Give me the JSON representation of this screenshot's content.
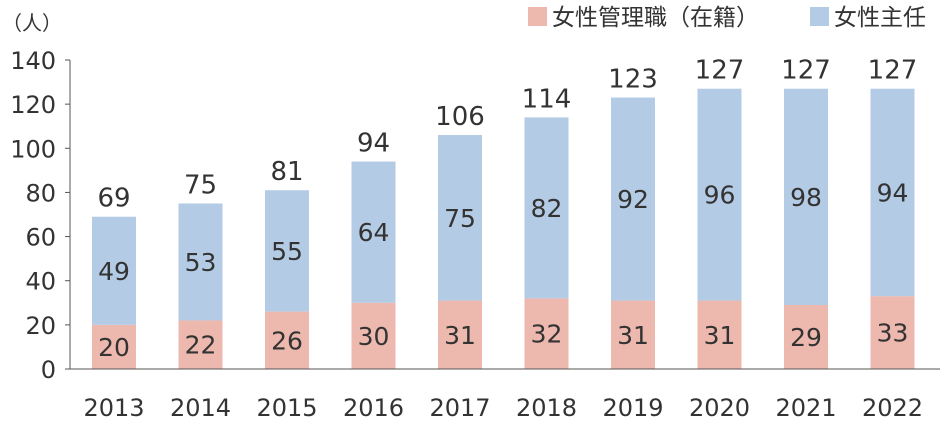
{
  "chart_data": {
    "type": "bar",
    "stacked": true,
    "unit_label": "（人）",
    "categories": [
      "2013",
      "2014",
      "2015",
      "2016",
      "2017",
      "2018",
      "2019",
      "2020",
      "2021",
      "2022"
    ],
    "series": [
      {
        "name": "女性管理職（在籍）",
        "color": "#EDB8AE",
        "values": [
          20,
          22,
          26,
          30,
          31,
          32,
          31,
          31,
          29,
          33
        ]
      },
      {
        "name": "女性主任",
        "color": "#B4CBE5",
        "values": [
          49,
          53,
          55,
          64,
          75,
          82,
          92,
          96,
          98,
          94
        ]
      }
    ],
    "totals": [
      69,
      75,
      81,
      94,
      106,
      114,
      123,
      127,
      127,
      127
    ],
    "ylim": [
      0,
      140
    ],
    "yticks": [
      0,
      20,
      40,
      60,
      80,
      100,
      120,
      140
    ],
    "grid": false,
    "legend_position": "top-right"
  }
}
